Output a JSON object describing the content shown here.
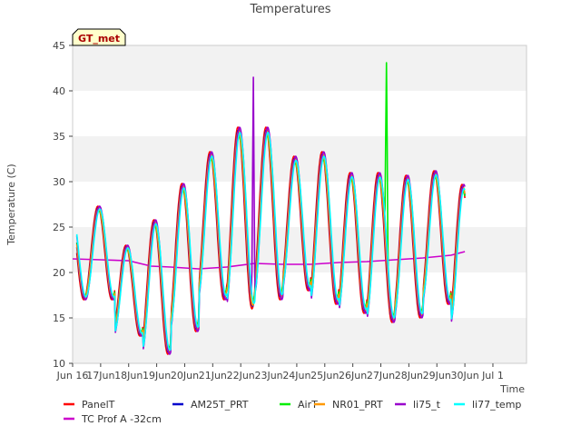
{
  "chart_data": {
    "type": "line",
    "title": "Temperatures",
    "xlabel": "Time",
    "ylabel": "Temperature (C)",
    "badge": "GT_met",
    "ylim": [
      10,
      45
    ],
    "yticks": [
      10,
      15,
      20,
      25,
      30,
      35,
      40,
      45
    ],
    "xlim": [
      15.0,
      31.2
    ],
    "xticks": [
      {
        "x": 15,
        "label": "Jun 16"
      },
      {
        "x": 16,
        "label": "17Jun"
      },
      {
        "x": 17,
        "label": "18Jun"
      },
      {
        "x": 18,
        "label": "19Jun"
      },
      {
        "x": 19,
        "label": "20Jun"
      },
      {
        "x": 20,
        "label": "21Jun"
      },
      {
        "x": 21,
        "label": "22Jun"
      },
      {
        "x": 22,
        "label": "23Jun"
      },
      {
        "x": 23,
        "label": "24Jun"
      },
      {
        "x": 24,
        "label": "25Jun"
      },
      {
        "x": 25,
        "label": "26Jun"
      },
      {
        "x": 26,
        "label": "27Jun"
      },
      {
        "x": 27,
        "label": "28Jun"
      },
      {
        "x": 28,
        "label": "29Jun"
      },
      {
        "x": 29,
        "label": "30Jun"
      },
      {
        "x": 30,
        "label": "Jul 1"
      }
    ],
    "grid": "horizontal bands",
    "daily": {
      "day_start": [
        15.5,
        16.5,
        17.5,
        18.5,
        19.5,
        20.5,
        21.5,
        22.5,
        23.5,
        24.5,
        25.5,
        26.5,
        27.5,
        28.5
      ],
      "max": [
        27.3,
        23.0,
        25.8,
        29.8,
        33.3,
        36.0,
        36.0,
        32.8,
        33.3,
        31.0,
        31.0,
        30.7,
        31.2,
        29.7
      ],
      "min": [
        17.0,
        13.0,
        11.0,
        13.5,
        17.0,
        16.0,
        17.0,
        18.0,
        16.5,
        15.5,
        14.5,
        15.0,
        16.5,
        14.0
      ]
    },
    "series": [
      {
        "name": "PanelT",
        "color": "#ff0000",
        "kind": "daily",
        "peak_offset": 0.4,
        "gain": 1.0
      },
      {
        "name": "TC Prof A -32cm",
        "color": "#cc00cc",
        "kind": "points",
        "x": [
          15.0,
          16.0,
          17.0,
          17.8,
          18.5,
          19.5,
          20.5,
          21.5,
          22.5,
          23.5,
          24.5,
          25.5,
          26.5,
          27.5,
          28.5,
          29.0
        ],
        "y": [
          21.5,
          21.4,
          21.3,
          20.7,
          20.6,
          20.4,
          20.6,
          21.0,
          20.9,
          20.9,
          21.1,
          21.2,
          21.4,
          21.6,
          21.9,
          22.3
        ]
      },
      {
        "name": "AM25T_PRT",
        "color": "#0000cc",
        "kind": "daily",
        "peak_offset": 0.42,
        "gain": 0.97
      },
      {
        "name": "AirT",
        "color": "#00ee00",
        "kind": "daily",
        "peak_offset": 0.44,
        "gain": 0.9,
        "spike": {
          "x": 26.2,
          "y": 43.1
        }
      },
      {
        "name": "NR01_PRT",
        "color": "#ff9900",
        "kind": "daily",
        "peak_offset": 0.43,
        "gain": 0.96
      },
      {
        "name": "li75_t",
        "color": "#9900cc",
        "kind": "daily",
        "peak_offset": 0.46,
        "gain": 1.0,
        "spike": {
          "x": 21.45,
          "y": 41.5
        }
      },
      {
        "name": "li77_temp",
        "color": "#00ffff",
        "kind": "daily",
        "peak_offset": 0.47,
        "gain": 0.94
      }
    ],
    "legend_placement": "bottom"
  }
}
